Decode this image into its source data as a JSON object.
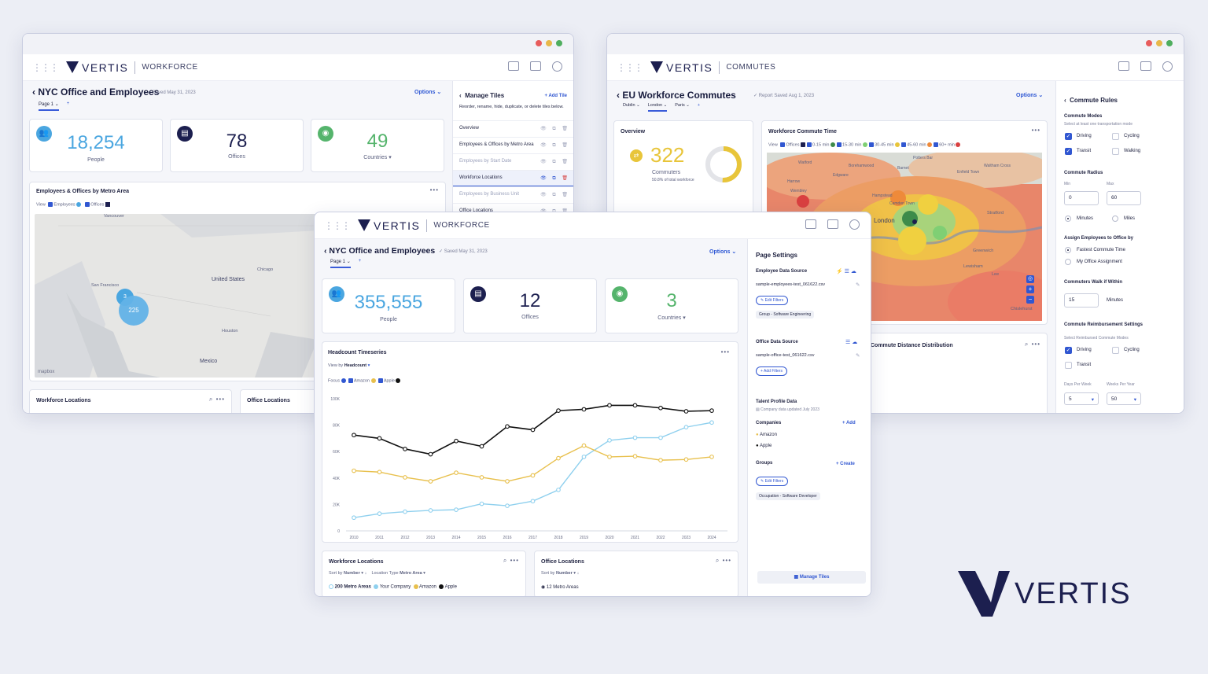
{
  "brand": {
    "logo_text": "VERTIS"
  },
  "win1": {
    "app_name": "Workforce",
    "title": "NYC Office and Employees",
    "saved": "Saved May 31, 2023",
    "options": "Options",
    "tab": "Page 1",
    "kpis": [
      {
        "value": "18,254",
        "label": "People",
        "color": "#4aa6e0"
      },
      {
        "value": "78",
        "label": "Offices",
        "color": "#1c1f4f"
      },
      {
        "value": "49",
        "label": "Countries",
        "color": "#55b46c"
      }
    ],
    "map": {
      "title": "Employees & Offices by Metro Area",
      "view": "View",
      "legend": [
        "Employees",
        "Offices"
      ],
      "labels": [
        "Vancouver",
        "United States",
        "Chicago",
        "San Francisco",
        "Houston",
        "Mexico"
      ],
      "clusters": [
        "3",
        "225"
      ],
      "attribution": "mapbox"
    },
    "bottom_tiles": [
      "Workforce Locations",
      "Office Locations"
    ],
    "manage": {
      "title": "Manage Tiles",
      "add": "Add Tile",
      "desc": "Reorder, rename, hide, duplicate, or delete tiles below.",
      "tiles": [
        "Overview",
        "Employees & Offices by Metro Area",
        "Employees by Start Date",
        "Workforce Locations",
        "Employees by Business Unit",
        "Office Locations"
      ]
    }
  },
  "win2": {
    "app_name": "Commutes",
    "title": "EU Workforce Commutes",
    "saved": "Report Saved Aug 1, 2023",
    "options": "Options",
    "tabs": [
      "Dublin",
      "London",
      "Paris"
    ],
    "overview": {
      "title": "Overview",
      "value": "322",
      "label": "Commuters",
      "sub": "50.8% of total workforce"
    },
    "commute_map": {
      "title": "Workforce Commute Time",
      "view": "View",
      "legend": [
        "Offices",
        "0-15 min",
        "15-30 min",
        "30-45 min",
        "45-60 min",
        "60+ min"
      ],
      "legend_colors": [
        "#1c1f4f",
        "#3d8b4a",
        "#7fcf74",
        "#e8c53a",
        "#ee8a3a",
        "#d94040"
      ],
      "places": [
        "Watford",
        "Borehamwood",
        "Potters Bar",
        "Barnet",
        "Enfield Town",
        "Waltham Cross",
        "Edgware",
        "Harrow",
        "Wembley",
        "Hampstead",
        "Camden Town",
        "London",
        "Stratford",
        "Greenwich",
        "Lewisham",
        "Lee",
        "Chislehurst"
      ]
    },
    "dist_title": "Commute Distance Distribution",
    "rules": {
      "title": "Commute Rules",
      "modes_title": "Commute Modes",
      "modes_sub": "Select at least one transportation mode",
      "modes": [
        {
          "label": "Driving",
          "on": true
        },
        {
          "label": "Cycling",
          "on": false
        },
        {
          "label": "Transit",
          "on": true
        },
        {
          "label": "Walking",
          "on": false
        }
      ],
      "radius_title": "Commute Radius",
      "min_label": "Min",
      "max_label": "Max",
      "min": "0",
      "max": "60",
      "units": [
        "Minutes",
        "Miles"
      ],
      "assign_title": "Assign Employees to Office by",
      "assign": [
        "Fastest Commute Time",
        "My Office Assignment"
      ],
      "walk_title": "Commuters Walk if Within",
      "walk_value": "15",
      "walk_unit": "Minutes",
      "reimb_title": "Commute Reimbursement Settings",
      "reimb_sub": "Select Reimbursed Commute Modes",
      "reimb_modes": [
        {
          "label": "Driving",
          "on": true
        },
        {
          "label": "Cycling",
          "on": false
        },
        {
          "label": "Transit",
          "on": false
        }
      ],
      "days_label": "Days Per Week",
      "weeks_label": "Weeks Per Year",
      "days": "5",
      "weeks": "50"
    }
  },
  "win3": {
    "app_name": "Workforce",
    "title": "NYC Office and Employees",
    "saved": "Saved May 31, 2023",
    "options": "Options",
    "tab": "Page 1",
    "kpis": [
      {
        "value": "355,555",
        "label": "People",
        "color": "#4aa6e0"
      },
      {
        "value": "12",
        "label": "Offices",
        "color": "#1c1f4f"
      },
      {
        "value": "3",
        "label": "Countries",
        "color": "#55b46c"
      }
    ],
    "chart_title": "Headcount Timeseries",
    "view_by": "View by",
    "view_by_value": "Headcount",
    "focus": "Focus",
    "workforce_tile": {
      "title": "Workforce Locations",
      "sort": "Sort by",
      "sort_value": "Number",
      "loc_type": "Location Type",
      "loc_value": "Metro Area",
      "legend": [
        "200 Metro Areas",
        "Your Company",
        "Amazon",
        "Apple"
      ]
    },
    "office_tile": {
      "title": "Office Locations",
      "sort": "Sort by",
      "sort_value": "Number",
      "count": "12 Metro Areas"
    },
    "settings": {
      "title": "Page Settings",
      "emp_source": "Employee Data Source",
      "emp_file": "sample-employees-test_061622.csv",
      "edit_filters": "Edit Filters",
      "emp_tag": "Group - Software Engineering",
      "office_source": "Office Data Source",
      "office_file": "sample-office-test_061622.csv",
      "add_filters": "Add Filters",
      "talent": "Talent Profile Data",
      "talent_sub": "Company data updated July 2023",
      "companies": "Companies",
      "add": "Add",
      "company_list": [
        "Amazon",
        "Apple"
      ],
      "groups": "Groups",
      "create": "Create",
      "group_tag": "Occupation - Software Developer",
      "manage_tiles": "Manage Tiles"
    }
  },
  "chart_data": {
    "type": "line",
    "title": "Headcount Timeseries",
    "x": [
      2010,
      2011,
      2012,
      2013,
      2014,
      2015,
      2016,
      2017,
      2018,
      2019,
      2020,
      2021,
      2022,
      2023,
      2024
    ],
    "ylim": [
      0,
      100000
    ],
    "yticks": [
      "0",
      "20K",
      "40K",
      "60K",
      "80K",
      "100K"
    ],
    "series": [
      {
        "name": "Focus",
        "color": "#8fd0ee",
        "values": [
          10000,
          13000,
          14500,
          15500,
          16000,
          20500,
          19000,
          22500,
          31000,
          56000,
          68500,
          70500,
          70500,
          78500,
          82000
        ]
      },
      {
        "name": "Amazon",
        "color": "#e8c04d",
        "values": [
          45500,
          44500,
          40500,
          37500,
          44000,
          40500,
          37500,
          42000,
          55000,
          64500,
          56000,
          56500,
          53500,
          54000,
          56000
        ]
      },
      {
        "name": "Apple",
        "color": "#111111",
        "values": [
          72500,
          70000,
          62000,
          58000,
          68000,
          64000,
          79000,
          76500,
          91000,
          92000,
          95000,
          95000,
          93000,
          90500,
          91000
        ]
      }
    ]
  }
}
